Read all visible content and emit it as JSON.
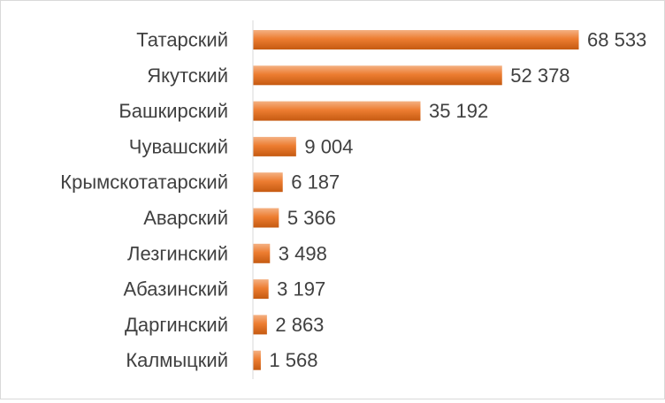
{
  "chart_data": {
    "type": "bar",
    "orientation": "horizontal",
    "categories": [
      "Татарский",
      "Якутский",
      "Башкирский",
      "Чувашский",
      "Крымскотатарский",
      "Аварский",
      "Лезгинский",
      "Абазинский",
      "Даргинский",
      "Калмыцкий"
    ],
    "values": [
      68533,
      52378,
      35192,
      9004,
      6187,
      5366,
      3498,
      3197,
      2863,
      1568
    ],
    "value_labels": [
      "68 533",
      "52 378",
      "35 192",
      "9 004",
      "6 187",
      "5 366",
      "3 498",
      "3 197",
      "2 863",
      "1 568"
    ],
    "xlim": [
      0,
      68533
    ],
    "grid": false,
    "legend": "none",
    "title": "",
    "xlabel": "",
    "ylabel": ""
  },
  "colors": {
    "bar_dark": "#c55a11",
    "bar_mid": "#ed7d31",
    "bar_light": "#f4b183",
    "axis": "#d9d9d9",
    "text": "#404040"
  }
}
